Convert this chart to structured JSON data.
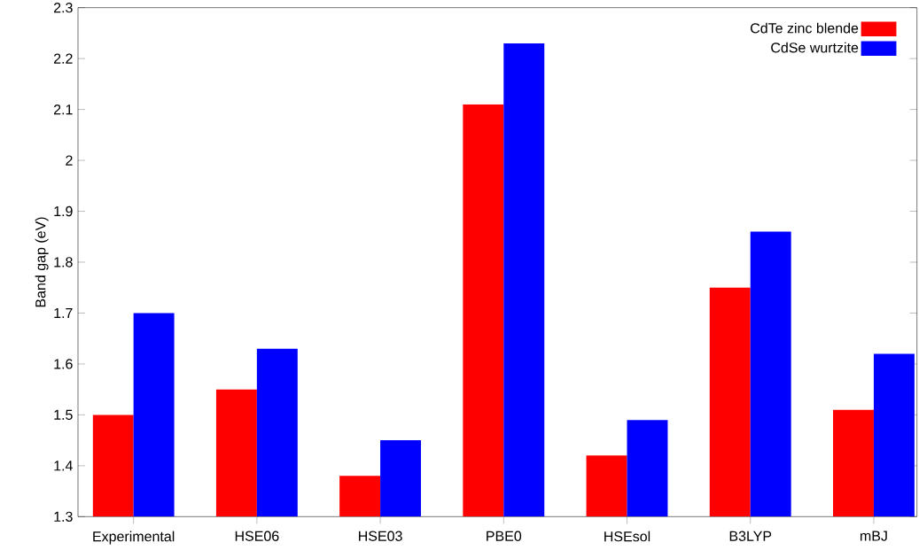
{
  "chart_data": {
    "type": "bar",
    "ylabel": "Band gap (eV)",
    "categories": [
      "Experimental",
      "HSE06",
      "HSE03",
      "PBE0",
      "HSEsol",
      "B3LYP",
      "mBJ"
    ],
    "series": [
      {
        "name": "CdTe zinc blende",
        "color": "#ff0000",
        "values": [
          1.5,
          1.55,
          1.38,
          2.11,
          1.42,
          1.75,
          1.51
        ]
      },
      {
        "name": "CdSe wurtzite",
        "color": "#0000ff",
        "values": [
          1.7,
          1.63,
          1.45,
          2.23,
          1.49,
          1.86,
          1.62
        ]
      }
    ],
    "ylim": [
      1.3,
      2.3
    ],
    "yticks": [
      1.3,
      1.4,
      1.5,
      1.6,
      1.7,
      1.8,
      1.9,
      2,
      2.1,
      2.2,
      2.3
    ],
    "grid": false,
    "legend": "top right"
  }
}
